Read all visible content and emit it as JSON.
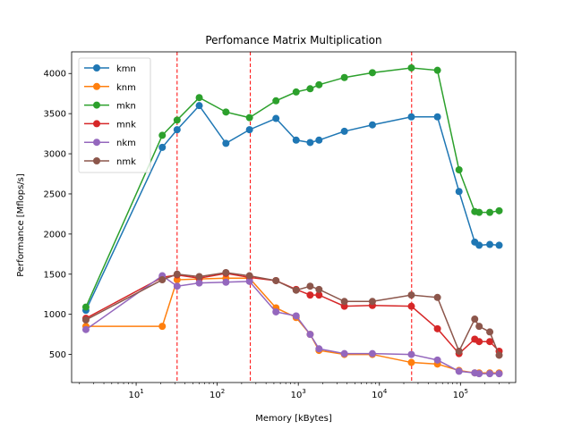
{
  "chart_data": {
    "type": "line",
    "title": "Perfomance Matrix Multiplication",
    "xlabel": "Memory [kBytes]",
    "ylabel": "Performance [Mflops/s]",
    "xscale": "log",
    "xlim": [
      1.6,
      480000
    ],
    "ylim": [
      150,
      4270
    ],
    "x_ticks": [
      {
        "value": 10,
        "base": "10",
        "exp": "1"
      },
      {
        "value": 100,
        "base": "10",
        "exp": "2"
      },
      {
        "value": 1000,
        "base": "10",
        "exp": "3"
      },
      {
        "value": 10000,
        "base": "10",
        "exp": "4"
      },
      {
        "value": 100000,
        "base": "10",
        "exp": "5"
      }
    ],
    "y_ticks": [
      500,
      1000,
      1500,
      2000,
      2500,
      3000,
      3500,
      4000
    ],
    "grid": false,
    "legend_position": "upper-left",
    "vlines": {
      "x": [
        32,
        256,
        25000
      ],
      "color": "#ff0000",
      "style": "dashed"
    },
    "x": [
      2.4,
      21,
      32,
      60,
      128,
      250,
      530,
      940,
      1400,
      1800,
      3700,
      8200,
      24800,
      52000,
      96000,
      150000,
      170000,
      230000,
      300000
    ],
    "series": [
      {
        "name": "kmn",
        "color": "#1f77b4",
        "values": [
          1050,
          3080,
          3300,
          3600,
          3130,
          3300,
          3440,
          3170,
          3140,
          3170,
          3280,
          3360,
          3460,
          3460,
          2530,
          1900,
          1860,
          1870,
          1860
        ]
      },
      {
        "name": "knm",
        "color": "#ff7f0e",
        "values": [
          850,
          850,
          1430,
          1440,
          1450,
          1450,
          1080,
          960,
          750,
          550,
          500,
          500,
          400,
          380,
          300,
          270,
          270,
          270,
          270
        ]
      },
      {
        "name": "mkn",
        "color": "#2ca02c",
        "values": [
          1090,
          3230,
          3420,
          3700,
          3520,
          3450,
          3660,
          3770,
          3810,
          3860,
          3950,
          4010,
          4070,
          4040,
          2800,
          2280,
          2270,
          2270,
          2290
        ]
      },
      {
        "name": "mnk",
        "color": "#d62728",
        "values": [
          950,
          1460,
          1490,
          1450,
          1510,
          1460,
          1420,
          1310,
          1240,
          1240,
          1100,
          1110,
          1100,
          820,
          510,
          690,
          660,
          660,
          540
        ]
      },
      {
        "name": "nkm",
        "color": "#9467bd",
        "values": [
          810,
          1480,
          1350,
          1390,
          1400,
          1410,
          1030,
          980,
          750,
          570,
          510,
          510,
          500,
          430,
          290,
          270,
          260,
          260,
          260
        ]
      },
      {
        "name": "nmk",
        "color": "#8c564b",
        "values": [
          930,
          1430,
          1500,
          1470,
          1520,
          1480,
          1420,
          1300,
          1350,
          1310,
          1160,
          1160,
          1240,
          1210,
          540,
          940,
          850,
          780,
          490
        ]
      }
    ]
  }
}
